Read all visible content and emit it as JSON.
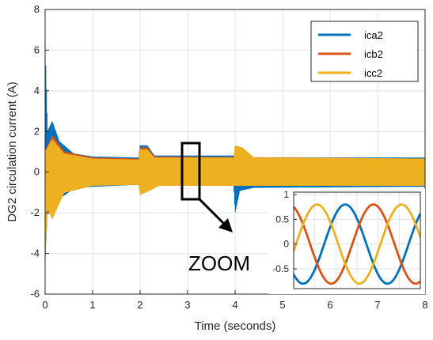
{
  "colors": {
    "ica2": "#0072BD",
    "icb2": "#D95319",
    "icc2": "#EDB120",
    "grid": "#e3e3e3",
    "axis": "#262626",
    "annotation": "#000000"
  },
  "annotation": {
    "zoom_label": "ZOOM"
  },
  "chart_data": [
    {
      "type": "line",
      "title": "",
      "xlabel": "Time (seconds)",
      "ylabel": "DG2 circulation current (A)",
      "xlim": [
        0,
        8
      ],
      "ylim": [
        -6,
        8
      ],
      "xticks": [
        "0",
        "1",
        "2",
        "3",
        "4",
        "5",
        "6",
        "7",
        "8"
      ],
      "yticks": [
        "-6",
        "-4",
        "-2",
        "0",
        "2",
        "4",
        "6",
        "8"
      ],
      "grid": true,
      "legend_position": "top-right",
      "series": [
        {
          "name": "ica2",
          "color_key": "ica2",
          "envelope_upper": [
            [
              0.0,
              6.4
            ],
            [
              0.05,
              2.0
            ],
            [
              0.15,
              2.5
            ],
            [
              0.3,
              1.5
            ],
            [
              0.6,
              0.9
            ],
            [
              1.0,
              0.75
            ],
            [
              1.97,
              0.7
            ],
            [
              2.0,
              1.3
            ],
            [
              2.15,
              1.3
            ],
            [
              2.3,
              0.8
            ],
            [
              2.6,
              0.8
            ],
            [
              3.97,
              0.8
            ],
            [
              4.0,
              0.8
            ],
            [
              4.3,
              0.7
            ],
            [
              8.0,
              0.7
            ]
          ],
          "envelope_lower": [
            [
              0.0,
              -4.2
            ],
            [
              0.05,
              -1.9
            ],
            [
              0.15,
              -2.2
            ],
            [
              0.3,
              -1.3
            ],
            [
              0.6,
              -0.8
            ],
            [
              1.0,
              -0.7
            ],
            [
              1.97,
              -0.6
            ],
            [
              2.0,
              -0.6
            ],
            [
              2.3,
              -0.6
            ],
            [
              3.97,
              -0.6
            ],
            [
              4.0,
              -2.0
            ],
            [
              4.1,
              -0.9
            ],
            [
              4.4,
              -0.75
            ],
            [
              8.0,
              -0.7
            ]
          ]
        },
        {
          "name": "icb2",
          "color_key": "icb2",
          "envelope_upper": [
            [
              0.0,
              1.0
            ],
            [
              0.15,
              1.8
            ],
            [
              0.4,
              1.0
            ],
            [
              1.0,
              0.7
            ],
            [
              1.97,
              0.65
            ],
            [
              2.0,
              1.2
            ],
            [
              2.15,
              1.2
            ],
            [
              2.3,
              0.75
            ],
            [
              8.0,
              0.65
            ]
          ],
          "envelope_lower": [
            [
              0.0,
              -2.0
            ],
            [
              0.15,
              -2.0
            ],
            [
              0.4,
              -1.0
            ],
            [
              1.0,
              -0.65
            ],
            [
              1.97,
              -0.6
            ],
            [
              2.0,
              -0.9
            ],
            [
              2.2,
              -0.8
            ],
            [
              2.4,
              -0.65
            ],
            [
              8.0,
              -0.65
            ]
          ]
        },
        {
          "name": "icc2",
          "color_key": "icc2",
          "envelope_upper": [
            [
              0.0,
              1.0
            ],
            [
              0.15,
              1.6
            ],
            [
              0.4,
              0.9
            ],
            [
              1.0,
              0.65
            ],
            [
              1.97,
              0.6
            ],
            [
              2.0,
              1.1
            ],
            [
              2.15,
              1.1
            ],
            [
              2.3,
              0.7
            ],
            [
              3.97,
              0.7
            ],
            [
              4.0,
              1.3
            ],
            [
              4.15,
              1.2
            ],
            [
              4.4,
              0.7
            ],
            [
              8.0,
              0.65
            ]
          ],
          "envelope_lower": [
            [
              0.0,
              -4.3
            ],
            [
              0.05,
              -1.8
            ],
            [
              0.15,
              -2.3
            ],
            [
              0.4,
              -1.0
            ],
            [
              1.0,
              -0.65
            ],
            [
              1.97,
              -0.6
            ],
            [
              2.0,
              -1.1
            ],
            [
              2.2,
              -0.9
            ],
            [
              2.4,
              -0.65
            ],
            [
              8.0,
              -0.65
            ]
          ]
        }
      ]
    },
    {
      "type": "line",
      "title": "",
      "xlabel": "",
      "ylabel": "",
      "xlim": [
        0,
        1.5
      ],
      "ylim": [
        -0.9,
        1.05
      ],
      "yticks": [
        "-0.5",
        "0",
        "0.5",
        "1"
      ],
      "grid": true,
      "series": [
        {
          "color_key": "ica2",
          "form": "sine",
          "amplitude": 0.8,
          "frequency": 1,
          "phase_deg": 230
        },
        {
          "color_key": "icb2",
          "form": "sine",
          "amplitude": 0.8,
          "frequency": 1,
          "phase_deg": 110
        },
        {
          "color_key": "icc2",
          "form": "sine",
          "amplitude": 0.8,
          "frequency": 1,
          "phase_deg": -10
        }
      ]
    }
  ]
}
